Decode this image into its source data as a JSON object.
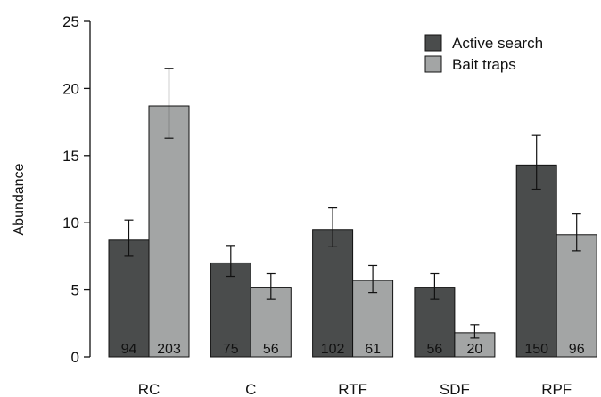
{
  "chart_data": {
    "type": "bar",
    "title": "",
    "xlabel": "",
    "ylabel": "Abundance",
    "ylim": [
      0,
      25
    ],
    "yticks": [
      0,
      5,
      10,
      15,
      20,
      25
    ],
    "grid": false,
    "legend_position": "top-right",
    "categories": [
      "RC",
      "C",
      "RTF",
      "SDF",
      "RPF"
    ],
    "series": [
      {
        "name": "Active search",
        "color": "#4a4c4c",
        "values": [
          8.7,
          7.0,
          9.5,
          5.2,
          14.3
        ],
        "err_low": [
          7.5,
          6.0,
          8.2,
          4.3,
          12.5
        ],
        "err_high": [
          10.2,
          8.3,
          11.1,
          6.2,
          16.5
        ],
        "labels": [
          "94",
          "75",
          "102",
          "56",
          "150"
        ]
      },
      {
        "name": "Bait traps",
        "color": "#a3a5a5",
        "values": [
          18.7,
          5.2,
          5.7,
          1.8,
          9.1
        ],
        "err_low": [
          16.3,
          4.3,
          4.8,
          1.4,
          7.9
        ],
        "err_high": [
          21.5,
          6.2,
          6.8,
          2.4,
          10.7
        ],
        "labels": [
          "203",
          "56",
          "61",
          "20",
          "96"
        ]
      }
    ]
  }
}
